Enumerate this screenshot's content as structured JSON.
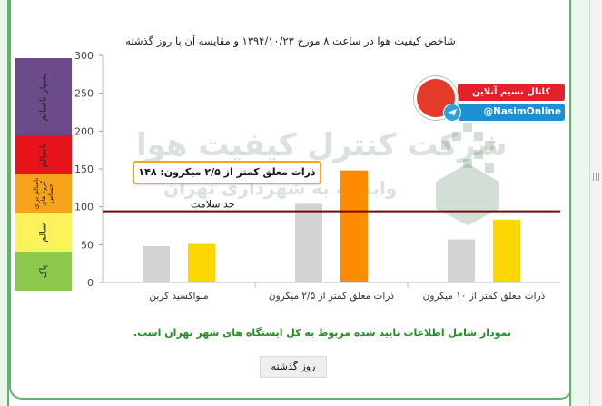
{
  "page": {
    "title": "شاخص کیفیت هوا در ساعت ۸ مورخ ۱۳۹۴/۱۰/۲۳ و مقایسه آن با روز گذشته",
    "note": "نمودار شامل اطلاعات تایید شده مربوط به کل ایستگاه های شهر تهران است.",
    "day_button": "روز گذشته",
    "callout": "ذرات معلق کمتر از ۲/۵ میکرون: ۱۴۸",
    "health_line_label": "حد سلامت",
    "watermark_line1": "شرکت کنترل کیفیت هوا",
    "watermark_line2": "وابسته به شهرداری تهران",
    "badge_channel": "کانال نسیم آنلاین",
    "badge_handle": "@NasimOnline",
    "colors": {
      "today_bar": "#ffd700",
      "today_bar_highlight": "#ff8c00",
      "yesterday_bar": "#d3d3d3",
      "health_line": "#800000",
      "accent_green": "#5fb36a"
    }
  },
  "aqi_bands": [
    {
      "label": "بسیار ناسالم",
      "from": 200,
      "to": 300,
      "color": "#6b4b8a"
    },
    {
      "label": "ناسالم",
      "from": 150,
      "to": 200,
      "color": "#e8141b"
    },
    {
      "label": "ناسالم برای گروه های حساس",
      "from": 100,
      "to": 150,
      "color": "#f7a21b"
    },
    {
      "label": "سالم",
      "from": 50,
      "to": 100,
      "color": "#fbf25c"
    },
    {
      "label": "پاک",
      "from": 0,
      "to": 50,
      "color": "#8cc84b"
    }
  ],
  "chart_data": {
    "type": "bar",
    "title": "شاخص کیفیت هوا در ساعت ۸ مورخ ۱۳۹۴/۱۰/۲۳ و مقایسه آن با روز گذشته",
    "categories": [
      "منواکسید کربن",
      "ذرات معلق کمتر از ۲/۵ میکرون",
      "ذرات معلق کمتر از ۱۰ میکرون"
    ],
    "series": [
      {
        "name": "",
        "values": [
          48,
          104,
          57
        ],
        "color": "#d3d3d3"
      },
      {
        "name": "",
        "values": [
          51,
          148,
          83
        ],
        "color": "#ffd700"
      }
    ],
    "highlight": {
      "series": 1,
      "category": 1,
      "color": "#ff8c00"
    },
    "reference_line": {
      "value": 94,
      "label": "حد سلامت"
    },
    "ylim": [
      0,
      300
    ],
    "yticks": [
      0,
      50,
      100,
      150,
      200,
      250,
      300
    ],
    "grid": false
  }
}
